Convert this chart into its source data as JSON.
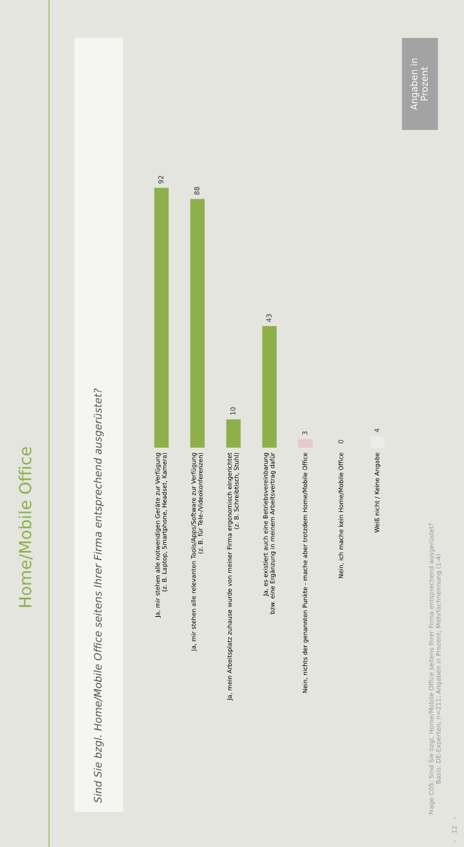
{
  "chart_data": {
    "type": "bar",
    "title": "Home/Mobile Office",
    "subtitle": "Sind Sie bzgl. Home/Mobile Office seitens Ihrer Firma entsprechend ausgerüstet?",
    "categories": [
      "Ja, mir stehen alle notwendigen Geräte zur Verfügung\n(z. B. Laptop, Smartphone, Headset, Kamera)",
      "Ja, mir stehen alle relevanten Tools/Apps/Software zur Verfügung\n(z. B. für Tele-/Videokonferenzen)",
      "Ja, mein Arbeitsplatz zuhause wurde von meiner Firma ergonomisch eingerichtet\n(z. B. Schreibtisch, Stuhl)",
      "Ja, es existiert auch eine Betriebsvereinbarung\nbzw. eine Ergänzung in meinem Arbeitsvertrag dafür",
      "Nein, nichts der genannten Punkte - mache aber trotzdem Home/Mobile Office",
      "Nein, ich mache kein Home/Mobile Office",
      "Weiß nicht / Keine Angabe"
    ],
    "values": [
      92,
      88,
      10,
      43,
      3,
      0,
      4
    ],
    "colors": [
      "#8db04a",
      "#8db04a",
      "#8db04a",
      "#8db04a",
      "#e6c9cd",
      "#e6c9cd",
      "#ececec"
    ],
    "data_labels": true,
    "tick_labels": "x",
    "grid": false,
    "legend": false,
    "annotations": [
      "Angaben in\nProzent",
      "Frage C05: Sind Sie bzgl. Home/Mobile Office seitens Ihrer Firma entsprechend ausgerüstet?\nBasis: DE-Experten; n=211; Angaben in Prozent; Mehrfachnennung (1-4)",
      "–   12   –"
    ]
  }
}
